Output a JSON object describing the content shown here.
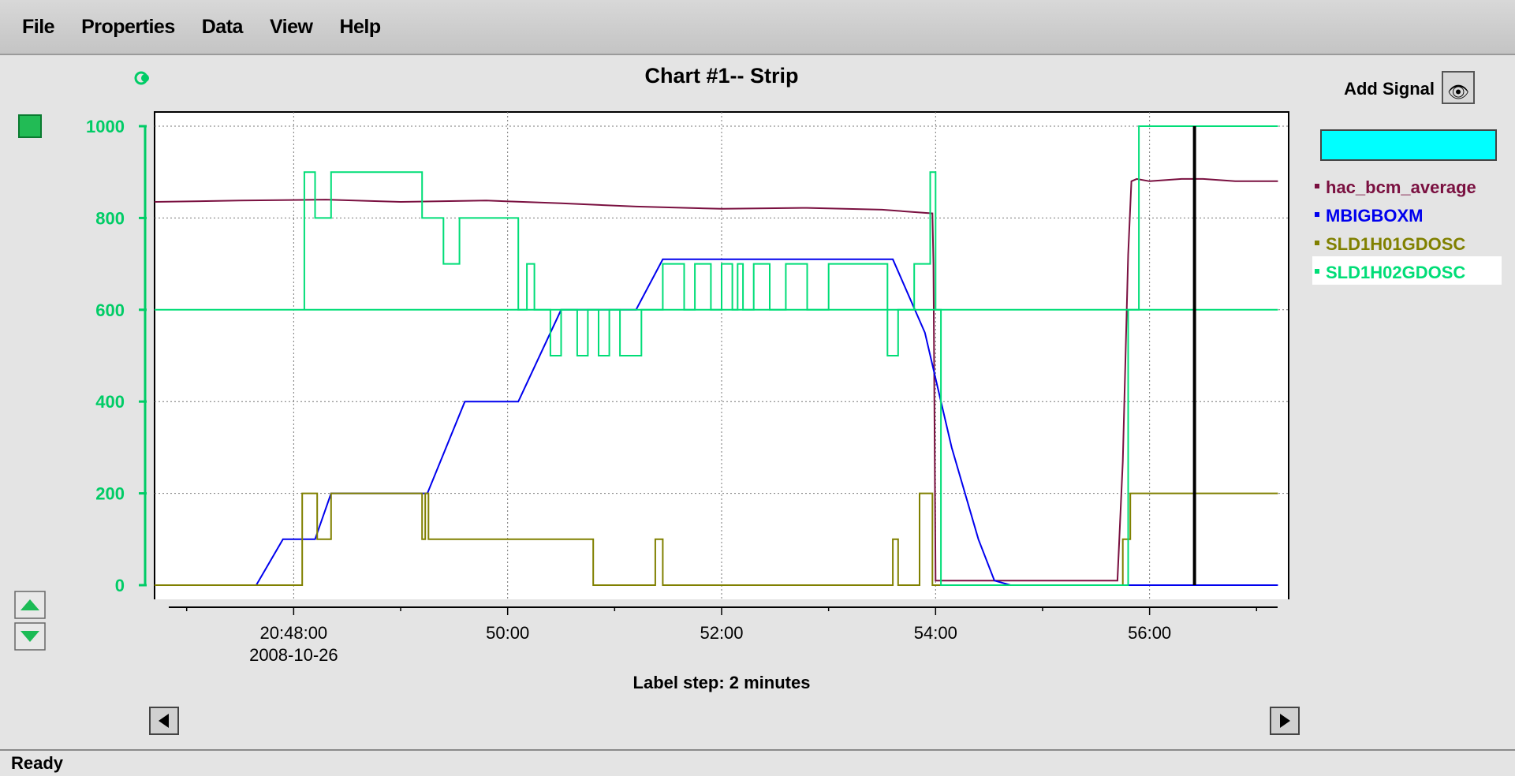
{
  "menu": [
    "File",
    "Properties",
    "Data",
    "View",
    "Help"
  ],
  "status": "Ready",
  "add_signal_label": "Add Signal",
  "label_step": "Label step: 2 minutes",
  "colors": {
    "axis_green": "#00cc66",
    "hac_bcm_average": "#7a1040",
    "MBIGBOXM": "#0000ee",
    "SLD1H01GDOSC": "#808000",
    "SLD1H02GDOSC": "#00dd77",
    "cursor": "#000000",
    "add_signal_box": "#00ffff"
  },
  "chart_data": {
    "type": "line",
    "title": "Chart #1-- Strip",
    "xlabel": "",
    "ylabel": "",
    "x_unit": "minutes after 20:00 on 2008-10-26",
    "xlim": [
      46.7,
      57.3
    ],
    "ylim": [
      0,
      1000
    ],
    "y_ticks": [
      0,
      200,
      400,
      600,
      800,
      1000
    ],
    "x_ticks": [
      {
        "x": 48,
        "label": "20:48:00",
        "sublabel": "2008-10-26"
      },
      {
        "x": 50,
        "label": "50:00",
        "sublabel": ""
      },
      {
        "x": 52,
        "label": "52:00",
        "sublabel": ""
      },
      {
        "x": 54,
        "label": "54:00",
        "sublabel": ""
      },
      {
        "x": 56,
        "label": "56:00",
        "sublabel": ""
      }
    ],
    "grid": true,
    "legend": "right",
    "cursor_x": 56.42,
    "series": [
      {
        "name": "hac_bcm_average",
        "x": [
          46.7,
          47.5,
          48.3,
          49.0,
          49.8,
          50.5,
          51.2,
          52.0,
          52.8,
          53.5,
          53.97,
          53.98,
          54.0,
          55.7,
          55.75,
          55.8,
          55.83,
          55.88,
          56.0,
          56.3,
          56.5,
          56.8,
          57.2
        ],
        "y": [
          835,
          838,
          840,
          835,
          838,
          832,
          825,
          820,
          822,
          818,
          810,
          700,
          10,
          10,
          270,
          720,
          880,
          885,
          880,
          885,
          885,
          880,
          880
        ]
      },
      {
        "name": "MBIGBOXM",
        "x": [
          46.7,
          47.65,
          47.7,
          47.9,
          48.2,
          48.35,
          49.25,
          49.6,
          50.1,
          50.5,
          51.2,
          51.45,
          53.6,
          53.9,
          54.15,
          54.4,
          54.55,
          54.7,
          55.5,
          55.9,
          56.05,
          57.2
        ],
        "y": [
          0,
          0,
          20,
          100,
          100,
          200,
          200,
          400,
          400,
          600,
          600,
          710,
          710,
          550,
          300,
          100,
          10,
          0,
          0,
          0,
          0,
          0
        ]
      },
      {
        "name": "SLD1H01GDOSC",
        "x": [
          46.7,
          48.08,
          48.08,
          48.22,
          48.22,
          48.35,
          48.35,
          49.2,
          49.2,
          49.23,
          49.23,
          49.26,
          49.26,
          50.8,
          50.8,
          51.38,
          51.38,
          51.45,
          51.45,
          53.6,
          53.6,
          53.65,
          53.65,
          53.85,
          53.85,
          53.97,
          53.97,
          55.75,
          55.75,
          55.82,
          55.82,
          57.2
        ],
        "y": [
          0,
          0,
          200,
          200,
          100,
          100,
          200,
          200,
          100,
          100,
          200,
          200,
          100,
          100,
          0,
          0,
          100,
          100,
          0,
          0,
          100,
          100,
          0,
          0,
          200,
          200,
          0,
          0,
          100,
          100,
          200,
          200
        ]
      },
      {
        "name": "SLD1H02GDOSC",
        "x": [
          48.1,
          48.1,
          48.2,
          48.2,
          48.35,
          48.35,
          49.2,
          49.2,
          49.4,
          49.4,
          49.55,
          49.55,
          50.1,
          50.1,
          50.18,
          50.18,
          50.25,
          50.25,
          50.4,
          50.4,
          50.5,
          50.5,
          50.65,
          50.65,
          50.75,
          50.75,
          50.85,
          50.85,
          50.95,
          50.95,
          51.05,
          51.05,
          51.25,
          51.25,
          51.45,
          51.45,
          51.65,
          51.65,
          51.75,
          51.75,
          51.9,
          51.9,
          52.0,
          52.0,
          52.1,
          52.1,
          52.15,
          52.15,
          52.2,
          52.2,
          52.3,
          52.3,
          52.45,
          52.45,
          52.6,
          52.6,
          52.8,
          52.8,
          53.0,
          53.0,
          53.55,
          53.55,
          53.65,
          53.65,
          53.8,
          53.8,
          53.95,
          53.95,
          54.0,
          54.0,
          54.05,
          54.05,
          55.8,
          55.8,
          55.9,
          55.9,
          56.0,
          56.0,
          57.2
        ],
        "y": [
          600,
          900,
          900,
          800,
          800,
          900,
          900,
          800,
          800,
          700,
          700,
          800,
          800,
          600,
          600,
          700,
          700,
          600,
          600,
          500,
          500,
          600,
          600,
          500,
          500,
          600,
          600,
          500,
          500,
          600,
          600,
          500,
          500,
          600,
          600,
          700,
          700,
          600,
          600,
          700,
          700,
          600,
          600,
          700,
          700,
          600,
          600,
          700,
          700,
          600,
          600,
          700,
          700,
          600,
          600,
          700,
          700,
          600,
          600,
          700,
          700,
          500,
          500,
          600,
          600,
          700,
          700,
          900,
          900,
          600,
          600,
          0,
          0,
          600,
          600,
          1000,
          1000,
          1000,
          1000
        ]
      },
      {
        "name": "SLD1H02GDOSC",
        "x": [
          46.7,
          57.2
        ],
        "y": [
          600,
          600
        ]
      }
    ]
  }
}
